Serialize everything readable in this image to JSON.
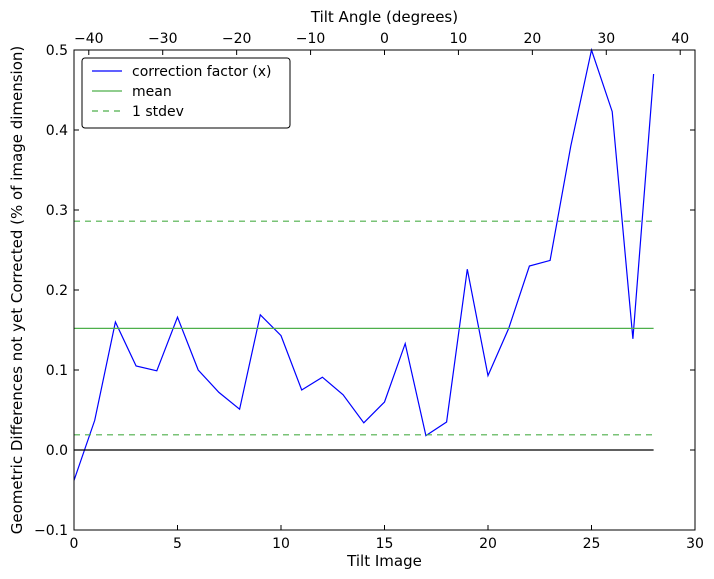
{
  "chart_data": {
    "type": "line",
    "xlabel": "Tilt Image",
    "x2label": "Tilt Angle (degrees)",
    "ylabel": "Geometric Differences not yet Corrected (% of image dimension)",
    "xlim": [
      0,
      30
    ],
    "x2lim": [
      -42,
      42
    ],
    "ylim": [
      -0.1,
      0.5
    ],
    "xticks": [
      0,
      5,
      10,
      15,
      20,
      25,
      30
    ],
    "x2ticks": [
      -40,
      -30,
      -20,
      -10,
      0,
      10,
      20,
      30,
      40
    ],
    "yticks": [
      -0.1,
      0.0,
      0.1,
      0.2,
      0.3,
      0.4,
      0.5
    ],
    "xtick_labels": [
      "0",
      "5",
      "10",
      "15",
      "20",
      "25",
      "30"
    ],
    "x2tick_labels": [
      "−40",
      "−30",
      "−20",
      "−10",
      "0",
      "10",
      "20",
      "30",
      "40"
    ],
    "ytick_labels": [
      "−0.1",
      "0.0",
      "0.1",
      "0.2",
      "0.3",
      "0.4",
      "0.5"
    ],
    "grid": false,
    "legend_position": "top-left",
    "series": [
      {
        "name": "correction factor (x)",
        "color": "#0000ff",
        "style": "solid",
        "x": [
          0,
          1,
          2,
          3,
          4,
          5,
          6,
          7,
          8,
          9,
          10,
          11,
          12,
          13,
          14,
          15,
          16,
          17,
          18,
          19,
          20,
          21,
          22,
          23,
          24,
          25,
          26,
          27,
          28
        ],
        "y": [
          -0.038,
          0.037,
          0.16,
          0.105,
          0.099,
          0.166,
          0.1,
          0.072,
          0.051,
          0.169,
          0.143,
          0.075,
          0.091,
          0.069,
          0.034,
          0.06,
          0.133,
          0.018,
          0.035,
          0.226,
          0.093,
          0.152,
          0.23,
          0.237,
          0.38,
          0.5,
          0.423,
          0.139,
          0.47
        ]
      },
      {
        "name": "mean",
        "color": "#4daf4a",
        "style": "solid",
        "x": [
          0,
          28
        ],
        "y": [
          0.152,
          0.152
        ]
      },
      {
        "name": "1 stdev",
        "color": "#4daf4a",
        "style": "dashed",
        "x": [
          0,
          28
        ],
        "y": [
          0.286,
          0.286
        ]
      },
      {
        "name": "",
        "color": "#4daf4a",
        "style": "dashed",
        "x": [
          0,
          28
        ],
        "y": [
          0.019,
          0.019
        ]
      },
      {
        "name": "",
        "color": "#000000",
        "style": "solid",
        "x": [
          0,
          28
        ],
        "y": [
          0.0,
          0.0
        ]
      }
    ],
    "legend": [
      {
        "label": "correction factor (x)",
        "color": "#0000ff",
        "style": "solid"
      },
      {
        "label": "mean",
        "color": "#4daf4a",
        "style": "solid"
      },
      {
        "label": "1 stdev",
        "color": "#4daf4a",
        "style": "dashed"
      }
    ]
  }
}
